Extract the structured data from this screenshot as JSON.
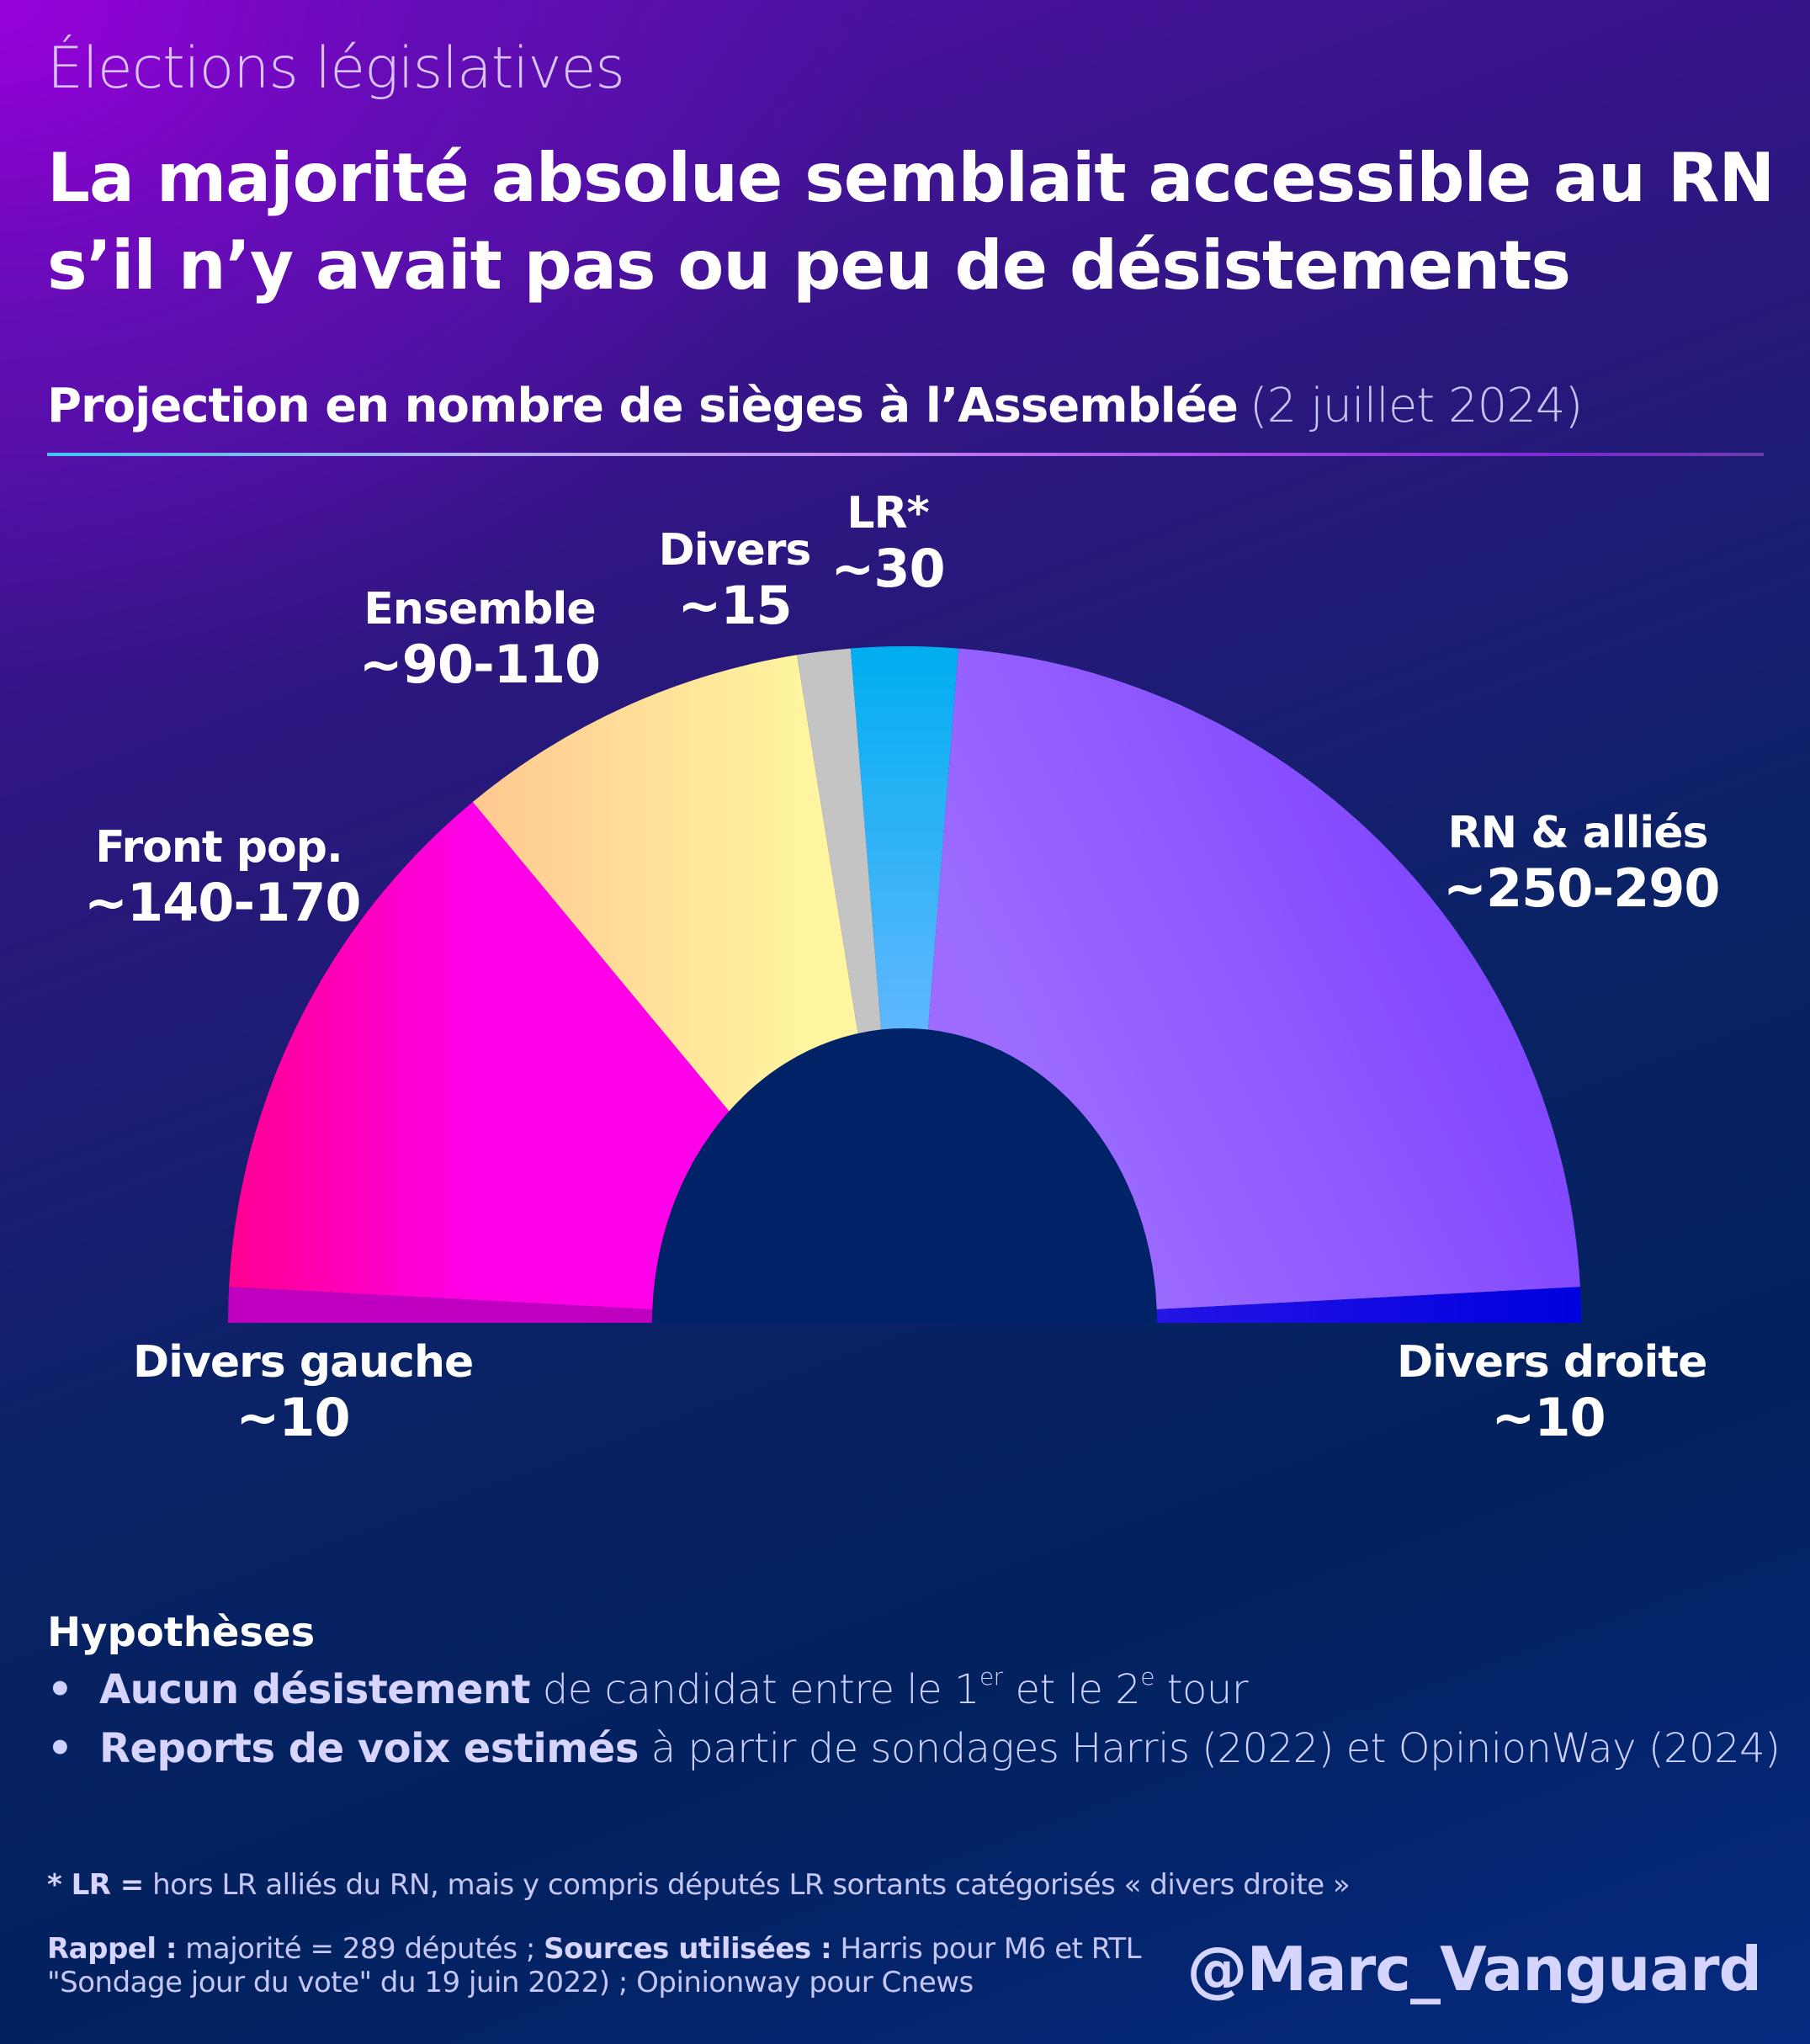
{
  "header": {
    "kicker": "Élections législatives",
    "headline_line1": "La majorité absolue semblait accessible au RN",
    "headline_line2": "s’il n’y avait pas ou peu de désistements",
    "subtitle": "Projection en nombre de sièges à l’Assemblée",
    "subtitle_date": "(2 juillet 2024)"
  },
  "chart_data": {
    "type": "pie",
    "subtype": "semicircle-donut",
    "title": "Projection en nombre de sièges à l’Assemblée",
    "date": "(2 juillet 2024)",
    "unit": "sièges",
    "order": "left-to-right",
    "slices": [
      {
        "name": "Divers gauche",
        "label": "~10",
        "value": 10,
        "color": "#c000c0"
      },
      {
        "name": "Front pop.",
        "label": "~140-170",
        "value": 155,
        "color": "#ff00cc",
        "gradient": [
          "#ff0090",
          "#ff00e8"
        ]
      },
      {
        "name": "Ensemble",
        "label": "~90-110",
        "value": 100,
        "color": "#ffe39a",
        "gradient": [
          "#ffc890",
          "#fff4a0"
        ]
      },
      {
        "name": "Divers",
        "label": "~15",
        "value": 15,
        "color": "#c4c4c4"
      },
      {
        "name": "LR*",
        "label": "~30",
        "value": 30,
        "color": "#1ab0f0",
        "gradient": [
          "#00aef0",
          "#6ab8ff"
        ]
      },
      {
        "name": "RN & alliés",
        "label": "~250-290",
        "value": 270,
        "color": "#8a4dff",
        "gradient": [
          "#7a3cff",
          "#9d6cff"
        ]
      },
      {
        "name": "Divers droite",
        "label": "~10",
        "value": 10,
        "color": "#1a10e0",
        "gradient": [
          "#3a20e8",
          "#0000e0"
        ]
      }
    ]
  },
  "hypotheses": {
    "title": "Hypothèses",
    "bullet_symbol": "•",
    "items": [
      {
        "bold": "Aucun désistement",
        "text_a": " de candidat entre le 1",
        "sup_a": "er",
        "text_b": " et le 2",
        "sup_b": "e",
        "text_c": " tour"
      },
      {
        "bold": "Reports de voix estimés",
        "text": " à partir de sondages Harris (2022) et OpinionWay (2024)"
      }
    ]
  },
  "footnotes": {
    "lr_prefix": "* LR =",
    "lr_text": " hors LR alliés du RN, mais y compris députés LR sortants catégorisés « divers droite »",
    "rappel_label": "Rappel :",
    "rappel_text": " majorité = 289 députés ; ",
    "sources_label": "Sources utilisées :",
    "sources_text1": " Harris pour M6 et RTL",
    "sources_text2": "\"Sondage jour du vote\" du 19 juin 2022) ; Opinionway pour Cnews"
  },
  "handle": "@Marc_Vanguard",
  "colors": {
    "background_dark": "#02215e",
    "background_purple": "#9b00dc",
    "hole": "#002266"
  }
}
